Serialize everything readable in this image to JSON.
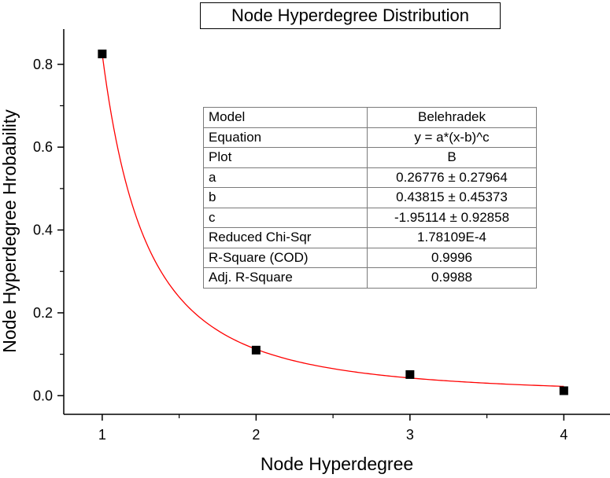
{
  "chart_data": {
    "type": "scatter",
    "title": "Node Hyperdegree Distribution",
    "xlabel": "Node Hyperdegree",
    "ylabel": "Node Hyperdegree Hrobability",
    "xlim": [
      0.75,
      4.3
    ],
    "ylim": [
      -0.045,
      0.885
    ],
    "xticks": [
      1,
      2,
      3,
      4
    ],
    "xtick_labels": [
      "1",
      "2",
      "3",
      "4"
    ],
    "yticks": [
      0.0,
      0.2,
      0.4,
      0.6,
      0.8
    ],
    "ytick_labels": [
      "0.0",
      "0.2",
      "0.4",
      "0.6",
      "0.8"
    ],
    "grid": false,
    "series": [
      {
        "marker": "square",
        "color": "#000000",
        "x": [
          1,
          2,
          3,
          4
        ],
        "y": [
          0.825,
          0.11,
          0.051,
          0.012
        ]
      }
    ],
    "fit": {
      "color": "#ff0000",
      "equation": "y = a*(x-b)^c",
      "a": 0.26776,
      "b": 0.43815,
      "c": -1.95114,
      "x_range": [
        1,
        4
      ]
    },
    "fit_table": [
      {
        "key": "Model",
        "value": "Belehradek"
      },
      {
        "key": "Equation",
        "value": "y = a*(x-b)^c"
      },
      {
        "key": "Plot",
        "value": "B"
      },
      {
        "key": "a",
        "value": "0.26776 ± 0.27964"
      },
      {
        "key": "b",
        "value": "0.43815 ± 0.45373"
      },
      {
        "key": "c",
        "value": "-1.95114 ± 0.92858"
      },
      {
        "key": "Reduced Chi-Sqr",
        "value": "1.78109E-4"
      },
      {
        "key": "R-Square (COD)",
        "value": "0.9996"
      },
      {
        "key": "Adj. R-Square",
        "value": "0.9988"
      }
    ]
  }
}
